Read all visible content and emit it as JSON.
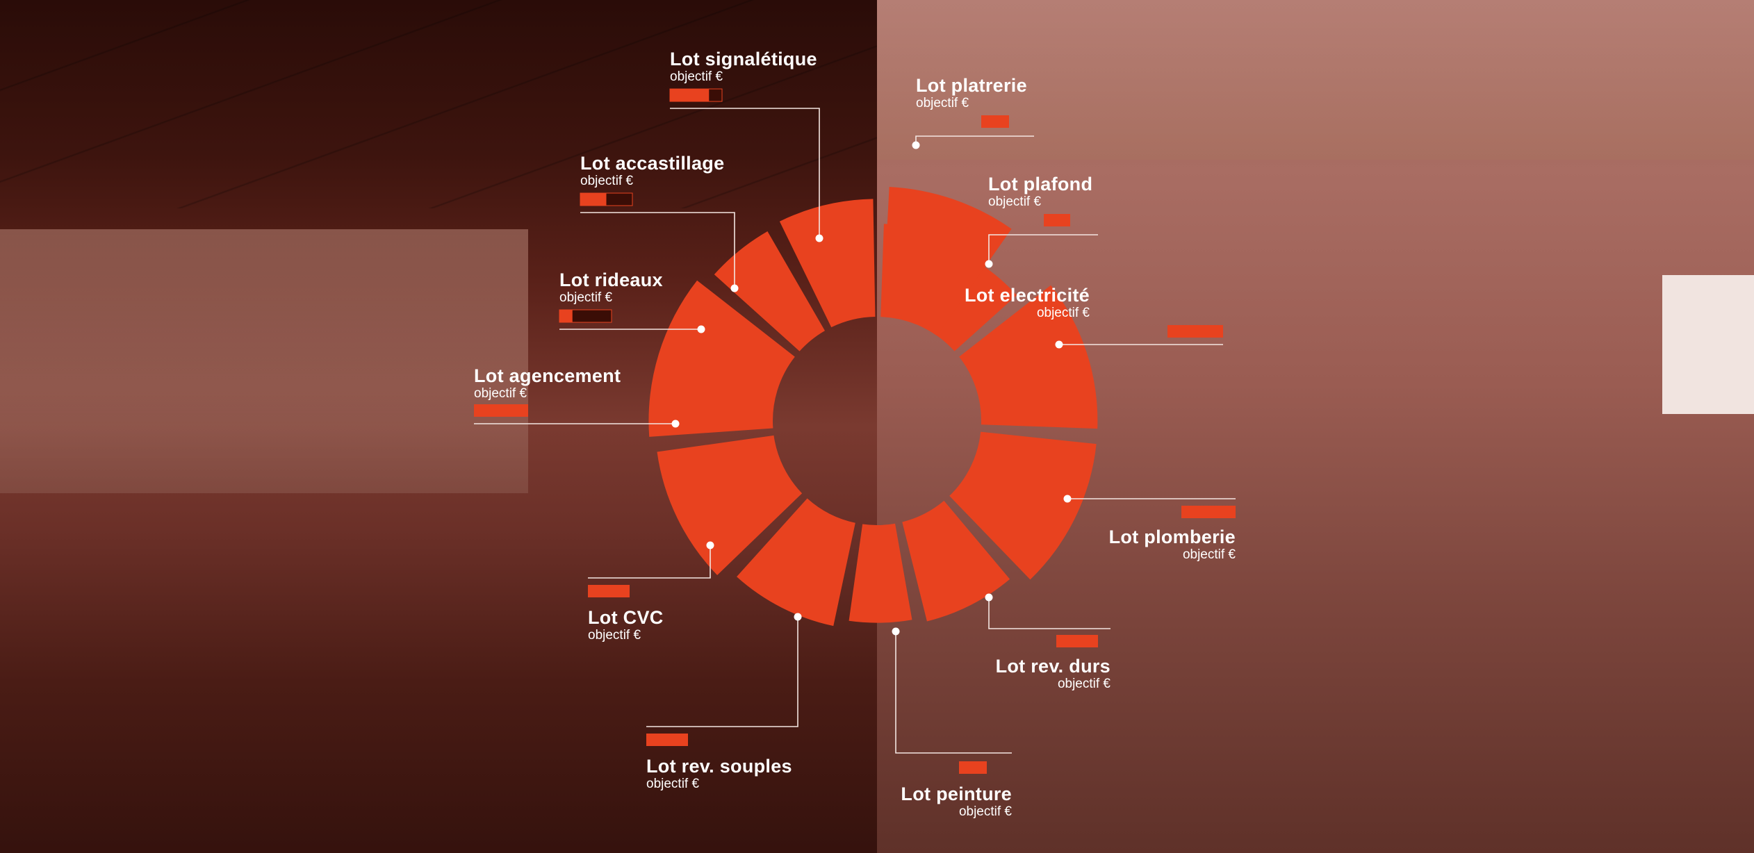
{
  "colors": {
    "accent": "#e8421f",
    "accent_dark": "#3a0d06",
    "line": "#f4e6e2",
    "text": "#ffffff"
  },
  "labels": [
    {
      "id": "signaletique",
      "title": "Lot signalétique",
      "subtitle": "objectif €"
    },
    {
      "id": "accastillage",
      "title": "Lot accastillage",
      "subtitle": "objectif €"
    },
    {
      "id": "rideaux",
      "title": "Lot rideaux",
      "subtitle": "objectif €"
    },
    {
      "id": "agencement",
      "title": "Lot agencement",
      "subtitle": "objectif €"
    },
    {
      "id": "cvc",
      "title": "Lot CVC",
      "subtitle": "objectif €"
    },
    {
      "id": "rev-souples",
      "title": "Lot rev. souples",
      "subtitle": "objectif €"
    },
    {
      "id": "peinture",
      "title": "Lot peinture",
      "subtitle": "objectif €"
    },
    {
      "id": "rev-durs",
      "title": "Lot rev. durs",
      "subtitle": "objectif €"
    },
    {
      "id": "plomberie",
      "title": "Lot plomberie",
      "subtitle": "objectif €"
    },
    {
      "id": "electricite",
      "title": "Lot electricité",
      "subtitle": "objectif €"
    },
    {
      "id": "plafond",
      "title": "Lot plafond",
      "subtitle": "objectif €"
    },
    {
      "id": "platrerie",
      "title": "Lot platrerie",
      "subtitle": "objectif €"
    }
  ],
  "chart_data": {
    "type": "pie",
    "variant": "radial-segmented-ring",
    "categories": [
      "Lot platrerie",
      "Lot plafond",
      "Lot electricité",
      "Lot plomberie",
      "Lot rev. durs",
      "Lot peinture",
      "Lot rev. souples",
      "Lot CVC",
      "Lot agencement",
      "Lot rideaux",
      "Lot accastillage",
      "Lot signalétique"
    ],
    "segment_span_degrees": [
      20,
      22,
      40,
      40,
      26,
      18,
      30,
      36,
      42,
      18,
      25,
      32
    ],
    "segment_radius_relative": [
      0.6,
      0.54,
      0.75,
      0.75,
      0.66,
      0.63,
      0.68,
      0.76,
      0.8,
      0.74,
      0.76,
      0.84
    ],
    "objective_bar_fill": [
      1.0,
      1.0,
      1.0,
      1.0,
      1.0,
      1.0,
      1.0,
      1.0,
      1.0,
      0.25,
      0.5,
      0.75
    ],
    "legend": "labels around ring"
  }
}
